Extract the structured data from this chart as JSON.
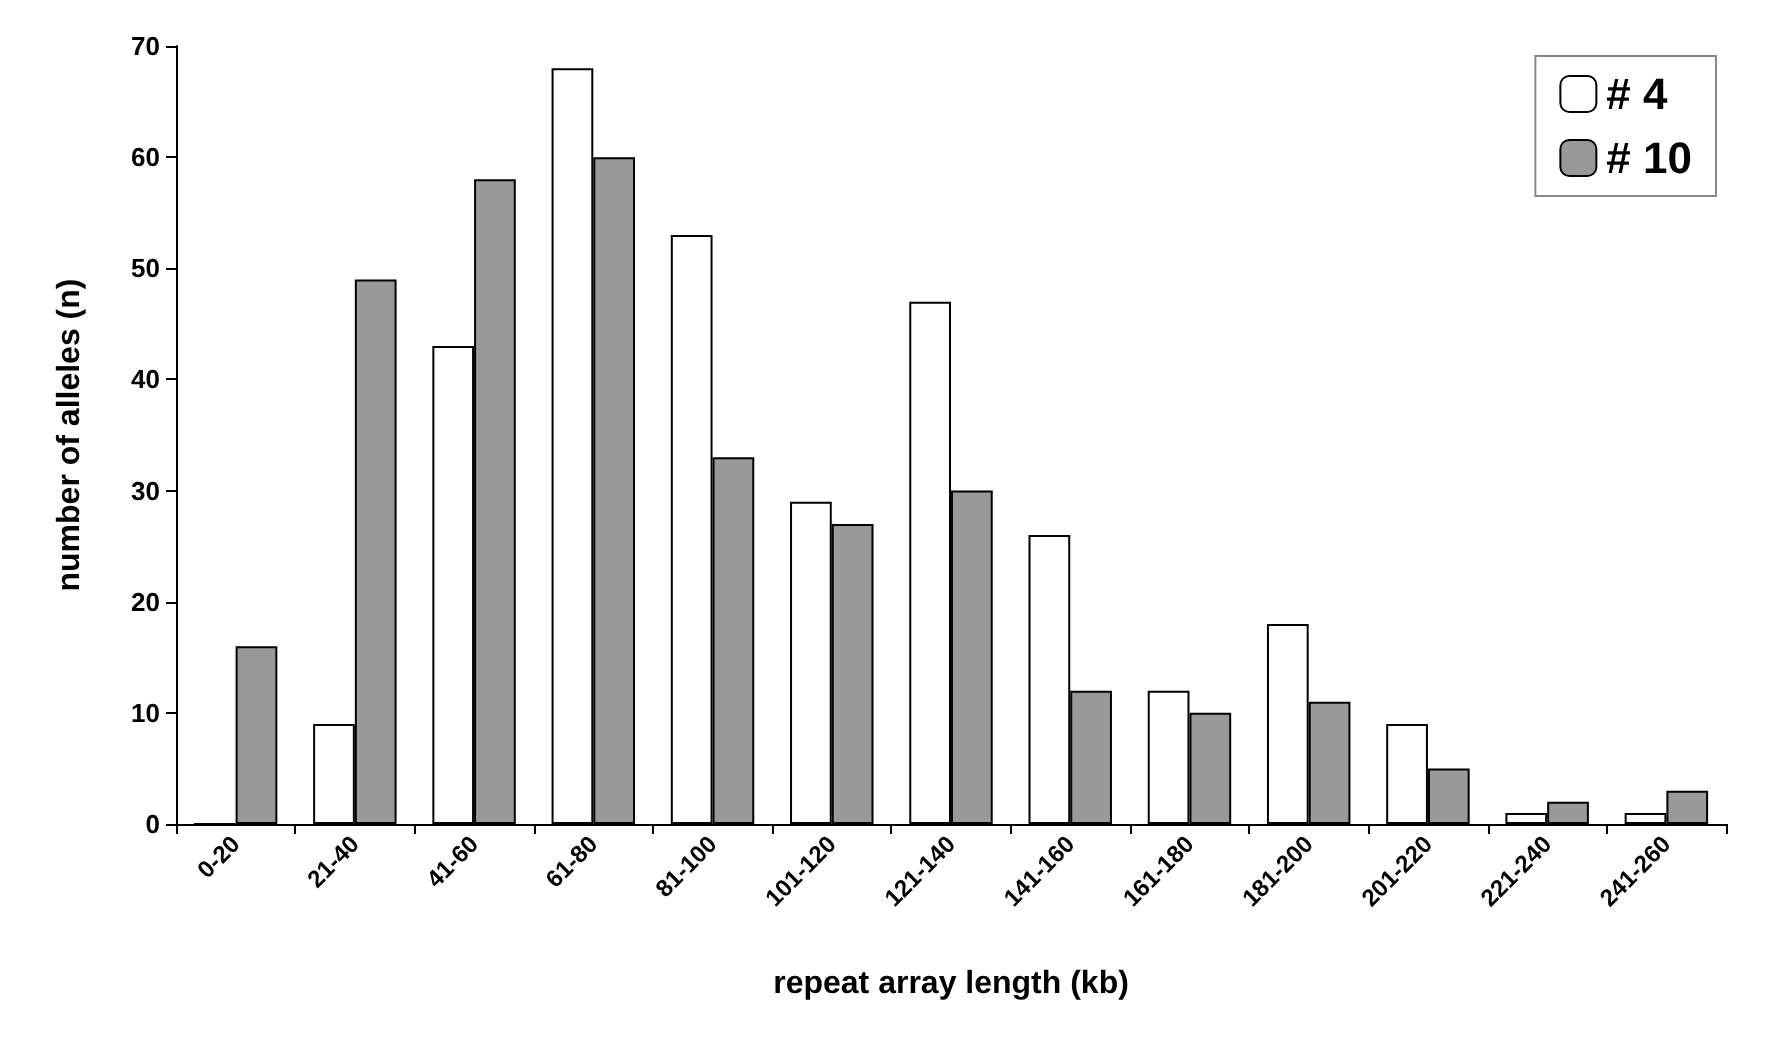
{
  "chart_data": {
    "type": "bar",
    "xlabel": "repeat array length (kb)",
    "ylabel": "number of alleles (n)",
    "categories": [
      "0-20",
      "21-40",
      "41-60",
      "61-80",
      "81-100",
      "101-120",
      "121-140",
      "141-160",
      "161-180",
      "181-200",
      "201-220",
      "221-240",
      "241-260"
    ],
    "series": [
      {
        "name": "# 4",
        "color": "#ffffff",
        "values": [
          0,
          9,
          43,
          68,
          53,
          29,
          47,
          26,
          12,
          18,
          9,
          1,
          1
        ]
      },
      {
        "name": "# 10",
        "color": "#999999",
        "values": [
          16,
          49,
          58,
          60,
          33,
          27,
          30,
          12,
          10,
          11,
          5,
          2,
          3
        ]
      }
    ],
    "ylim": [
      0,
      70
    ],
    "yticks": [
      0,
      10,
      20,
      30,
      40,
      50,
      60,
      70
    ],
    "grid": false,
    "legend": "top right"
  }
}
